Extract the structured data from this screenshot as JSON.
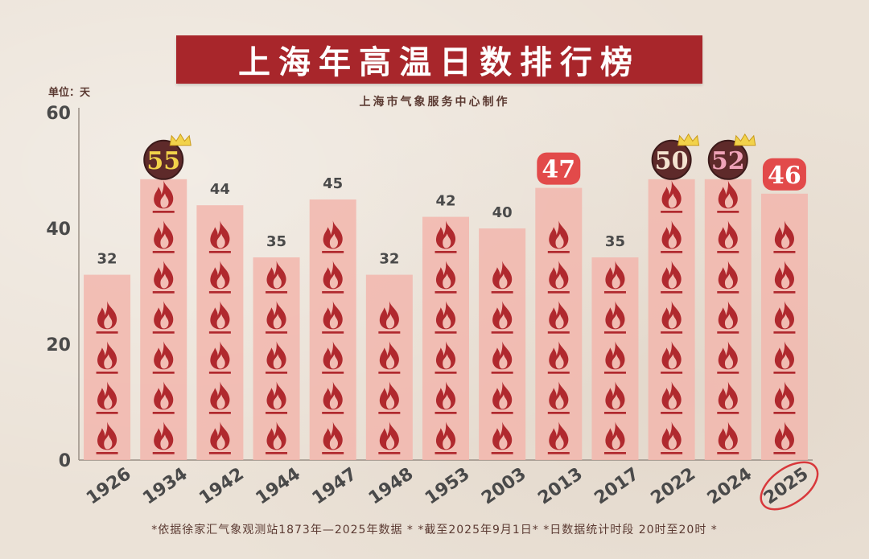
{
  "title": "上海年高温日数排行榜",
  "subtitle": "上海市气象服务中心制作",
  "unit_label": "单位：天",
  "footnote": "*依据徐家汇气象观测站1873年—2025年数据 * *截至2025年9月1日* *日数据统计时段 20时至20时 *",
  "colors": {
    "title_bg": "#a8262b",
    "bar_fill": "#f2b6ad",
    "flame": "#b0292e",
    "badge_dark": "#5e2a2a",
    "badge_red": "#e24a4a",
    "gold": "#f2d24a",
    "pink": "#f0a3b8",
    "axis_text": "#4a4a4a"
  },
  "chart_data": {
    "type": "bar",
    "title": "上海年高温日数排行榜",
    "ylabel": "单位：天",
    "xlabel": "",
    "ylim": [
      0,
      60
    ],
    "yticks": [
      0,
      20,
      40,
      60
    ],
    "grid": false,
    "categories": [
      "1926",
      "1934",
      "1942",
      "1944",
      "1947",
      "1948",
      "1953",
      "2003",
      "2013",
      "2017",
      "2022",
      "2024",
      "2025"
    ],
    "values": [
      32,
      55,
      44,
      35,
      45,
      32,
      42,
      40,
      47,
      35,
      50,
      52,
      46
    ],
    "highlights": {
      "1934": {
        "badge": "dark",
        "text_color": "gold",
        "crown": true
      },
      "2013": {
        "badge": "red"
      },
      "2022": {
        "badge": "dark",
        "text_color": "light",
        "crown": true
      },
      "2024": {
        "badge": "dark",
        "text_color": "pink",
        "crown": true
      },
      "2025": {
        "badge": "red",
        "circled": true
      }
    }
  }
}
